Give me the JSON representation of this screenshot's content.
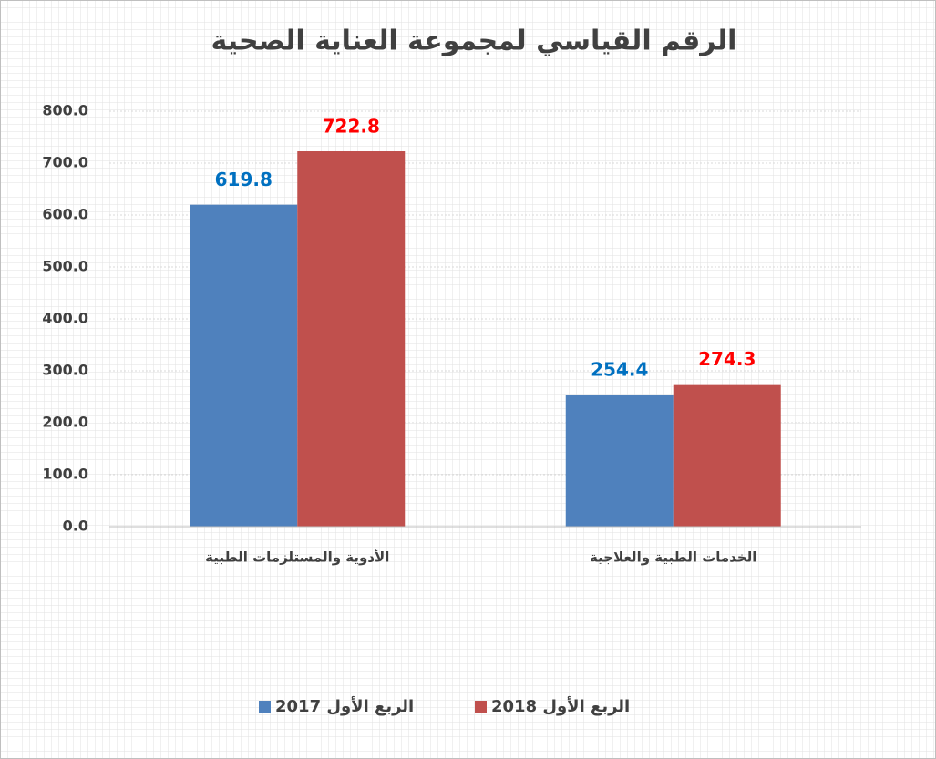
{
  "chart_data": {
    "type": "bar",
    "title": "الرقم القياسي لمجموعة العناية الصحية",
    "categories": [
      "الأدوية والمستلزمات الطبية",
      "الخدمات الطبية والعلاجية"
    ],
    "series": [
      {
        "name": "الربع الأول 2017",
        "color": "#4f81bd",
        "label_color": "#0070c0",
        "values": [
          619.8,
          254.4
        ]
      },
      {
        "name": "الربع الأول 2018",
        "color": "#c0504d",
        "label_color": "#ff0000",
        "values": [
          722.8,
          274.3
        ]
      }
    ],
    "ylim": [
      0,
      800
    ],
    "yticks": [
      {
        "value": 0,
        "label": "0.0"
      },
      {
        "value": 100,
        "label": "100.0"
      },
      {
        "value": 200,
        "label": "200.0"
      },
      {
        "value": 300,
        "label": "300.0"
      },
      {
        "value": 400,
        "label": "400.0"
      },
      {
        "value": 500,
        "label": "500.0"
      },
      {
        "value": 600,
        "label": "600.0"
      },
      {
        "value": 700,
        "label": "700.0"
      },
      {
        "value": 800,
        "label": "800.0"
      }
    ],
    "legend": "bottom"
  }
}
